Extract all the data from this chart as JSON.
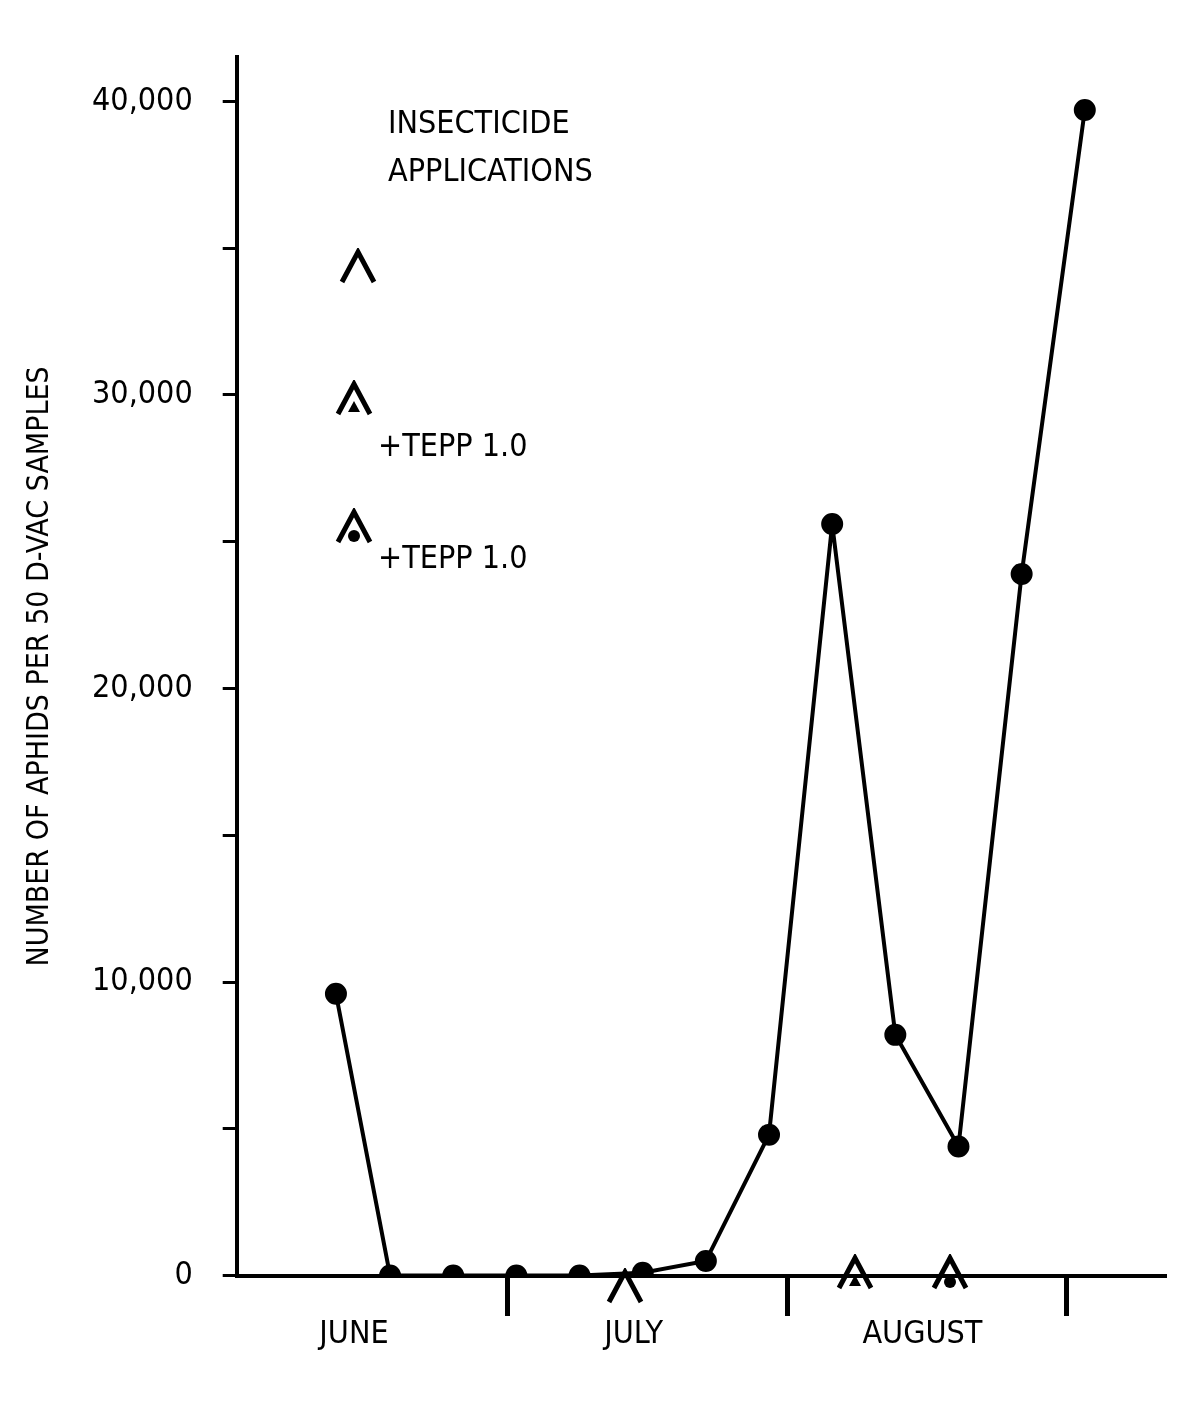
{
  "chart_data": {
    "type": "line",
    "ylabel": "NUMBER OF APHIDS PER 50 D-VAC SAMPLES",
    "x": [
      "--06-12",
      "--06-18",
      "--06-25",
      "--07-02",
      "--07-09",
      "--07-16",
      "--07-23",
      "--07-30",
      "--08-06",
      "--08-13",
      "--08-20",
      "--08-27",
      "--09-03"
    ],
    "series": [
      {
        "color": "#000000",
        "values": [
          9600,
          0,
          0,
          0,
          0,
          100,
          500,
          4800,
          25600,
          8200,
          4400,
          23900,
          39700
        ]
      }
    ],
    "xlim": [
      "--06-01",
      "--09-12"
    ],
    "xticks": [
      {
        "value": "--06-14",
        "label": "JUNE"
      },
      {
        "value": "--07-15",
        "label": "JULY"
      },
      {
        "value": "--08-16",
        "label": "AUGUST"
      }
    ],
    "ylim": [
      0,
      41500
    ],
    "yticks": [
      0,
      {
        "value": 5000,
        "label": null
      },
      {
        "value": 10000,
        "label": "10,000"
      },
      {
        "value": 15000,
        "label": null
      },
      {
        "value": 20000,
        "label": "20,000"
      },
      {
        "value": 25000,
        "label": null
      },
      {
        "value": 30000,
        "label": "30,000"
      },
      {
        "value": 35000,
        "label": null
      },
      {
        "value": 40000,
        "label": "40,000"
      }
    ],
    "annotations": [
      "INSECTICIDE APPLICATIONS",
      "+TEPP 1.0",
      "+TEPP 1.0"
    ],
    "grid": false,
    "legend": false,
    "marker": "circle",
    "line_style": "solid"
  }
}
